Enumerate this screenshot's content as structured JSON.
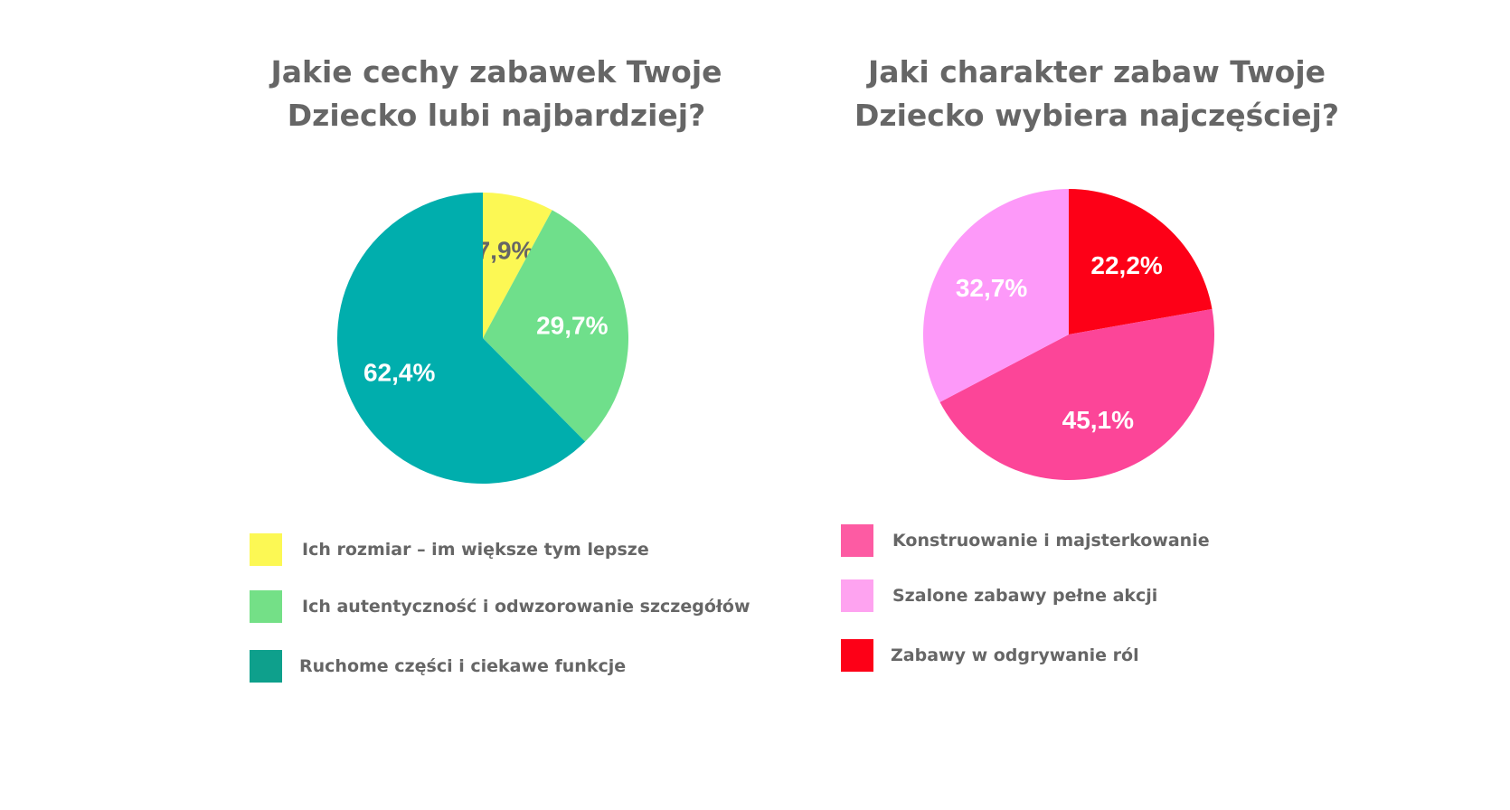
{
  "chart_data": [
    {
      "type": "pie",
      "title": [
        "Jakie cechy zabawek Twoje",
        "Dziecko lubi najbardziej?"
      ],
      "slices": [
        {
          "label": "Ich rozmiar – im większe tym lepsze",
          "value": 7.9,
          "display": "7,9%",
          "color": "#fcf854",
          "label_color": "#666666"
        },
        {
          "label": "Ich autentyczność i odwzorowanie szczegółów",
          "value": 29.7,
          "display": "29,7%",
          "color": "#6fdf8b",
          "label_color": "#ffffff"
        },
        {
          "label": "Ruchome części i ciekawe funkcje",
          "value": 62.4,
          "display": "62,4%",
          "color": "#00aead",
          "label_color": "#ffffff"
        }
      ],
      "legend": [
        {
          "label": "Ich rozmiar – im większe tym lepsze",
          "color": "#fcf854"
        },
        {
          "label": "Ich autentyczność i odwzorowanie szczegółów",
          "color": "#74e087"
        },
        {
          "label": "Ruchome części i ciekawe funkcje",
          "color": "#0ea08c"
        }
      ],
      "start_angle_deg": 0,
      "direction": "clockwise",
      "legend_position": "bottom"
    },
    {
      "type": "pie",
      "title": [
        "Jaki charakter zabaw Twoje",
        "Dziecko wybiera najczęściej?"
      ],
      "slices": [
        {
          "label": "Zabawy w odgrywanie ról",
          "value": 22.2,
          "display": "22,2%",
          "color": "#fd0017",
          "label_color": "#ffffff"
        },
        {
          "label": "Konstruowanie i majsterkowanie",
          "value": 45.1,
          "display": "45,1%",
          "color": "#fc4598",
          "label_color": "#ffffff"
        },
        {
          "label": "Szalone zabawy pełne akcji",
          "value": 32.7,
          "display": "32,7%",
          "color": "#fd99f9",
          "label_color": "#ffffff"
        }
      ],
      "legend": [
        {
          "label": "Konstruowanie i majsterkowanie",
          "color": "#fd5ba3"
        },
        {
          "label": "Szalone zabawy pełne akcji",
          "color": "#fea3f0"
        },
        {
          "label": "Zabawy w odgrywanie ról",
          "color": "#fd0017"
        }
      ],
      "start_angle_deg": 0,
      "direction": "clockwise",
      "legend_position": "bottom"
    }
  ]
}
